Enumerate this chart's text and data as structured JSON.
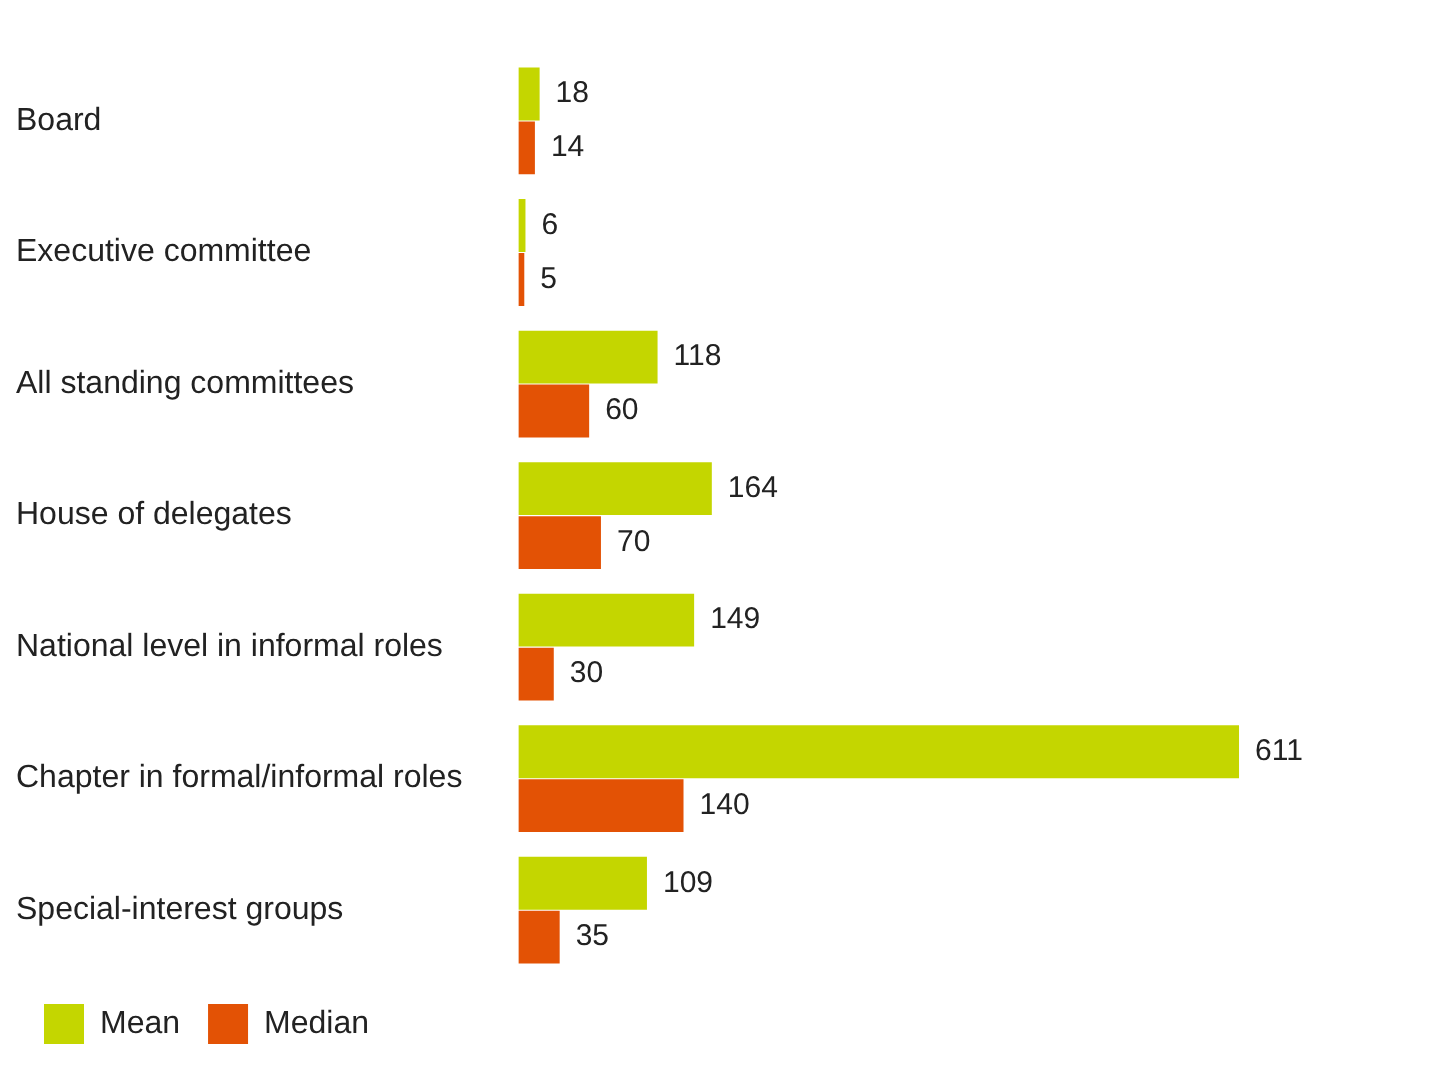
{
  "chart_data": {
    "type": "bar",
    "orientation": "horizontal",
    "categories": [
      "Board",
      "Executive committee",
      "All standing committees",
      "House of delegates",
      "National level in informal roles",
      "Chapter in formal/informal roles",
      "Special-interest groups"
    ],
    "series": [
      {
        "name": "Mean",
        "color": "#c4d600",
        "values": [
          18,
          6,
          118,
          164,
          149,
          611,
          109
        ]
      },
      {
        "name": "Median",
        "color": "#e35205",
        "values": [
          14,
          5,
          60,
          70,
          30,
          140,
          35
        ]
      }
    ],
    "data_labels": true,
    "legend": "bottom left",
    "grid": false
  }
}
